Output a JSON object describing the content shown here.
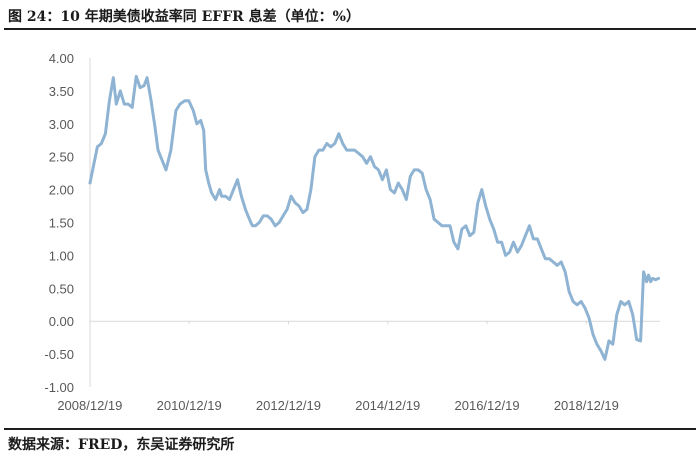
{
  "title": "图 24：10 年期美债收益率同 EFFR 息差（单位：%）",
  "source": "数据来源：FRED，东吴证券研究所",
  "chart_data": {
    "type": "line",
    "title": "图 24：10 年期美债收益率同 EFFR 息差（单位：%）",
    "xlabel": "",
    "ylabel": "",
    "ylim": [
      -1.0,
      4.0
    ],
    "yticks": [
      "4.00",
      "3.50",
      "3.00",
      "2.50",
      "2.00",
      "1.50",
      "1.00",
      "0.50",
      "0.00",
      "-0.50",
      "-1.00"
    ],
    "xticks": [
      "2008/12/19",
      "2010/12/19",
      "2012/12/19",
      "2014/12/19",
      "2016/12/19",
      "2018/12/19"
    ],
    "xlim": [
      2008.97,
      2020.45
    ],
    "grid": false,
    "legend": "none",
    "line_color": "#8fb3d3",
    "series": [
      {
        "x": [
          2008.97,
          2009.05,
          2009.12,
          2009.2,
          2009.28,
          2009.36,
          2009.44,
          2009.5,
          2009.58,
          2009.66,
          2009.74,
          2009.82,
          2009.9,
          2009.98,
          2010.06,
          2010.12,
          2010.2,
          2010.28,
          2010.34,
          2010.42,
          2010.5,
          2010.6,
          2010.7,
          2010.78,
          2010.88,
          2010.96,
          2011.05,
          2011.12,
          2011.2,
          2011.26,
          2011.3,
          2011.36,
          2011.42,
          2011.5,
          2011.58,
          2011.62,
          2011.7,
          2011.78,
          2011.86,
          2011.94,
          2012.02,
          2012.1,
          2012.18,
          2012.24,
          2012.3,
          2012.38,
          2012.46,
          2012.54,
          2012.62,
          2012.7,
          2012.78,
          2012.86,
          2012.94,
          2013.02,
          2013.1,
          2013.18,
          2013.26,
          2013.34,
          2013.42,
          2013.5,
          2013.58,
          2013.66,
          2013.74,
          2013.82,
          2013.9,
          2013.98,
          2014.06,
          2014.14,
          2014.22,
          2014.3,
          2014.38,
          2014.46,
          2014.54,
          2014.62,
          2014.7,
          2014.78,
          2014.86,
          2014.94,
          2015.02,
          2015.1,
          2015.18,
          2015.26,
          2015.34,
          2015.42,
          2015.5,
          2015.58,
          2015.66,
          2015.74,
          2015.82,
          2015.9,
          2015.98,
          2016.06,
          2016.14,
          2016.22,
          2016.3,
          2016.38,
          2016.46,
          2016.54,
          2016.62,
          2016.7,
          2016.78,
          2016.86,
          2016.94,
          2017.02,
          2017.1,
          2017.18,
          2017.26,
          2017.34,
          2017.42,
          2017.5,
          2017.58,
          2017.66,
          2017.74,
          2017.82,
          2017.9,
          2017.98,
          2018.06,
          2018.14,
          2018.22,
          2018.3,
          2018.38,
          2018.46,
          2018.54,
          2018.62,
          2018.7,
          2018.78,
          2018.86,
          2018.94,
          2019.02,
          2019.1,
          2019.18,
          2019.26,
          2019.34,
          2019.42,
          2019.5,
          2019.58,
          2019.66,
          2019.74,
          2019.82,
          2019.9,
          2019.98,
          2020.06,
          2020.12,
          2020.18,
          2020.22,
          2020.26,
          2020.3,
          2020.36,
          2020.42
        ],
        "y": [
          2.1,
          2.4,
          2.65,
          2.7,
          2.85,
          3.35,
          3.7,
          3.3,
          3.5,
          3.3,
          3.3,
          3.25,
          3.72,
          3.55,
          3.58,
          3.7,
          3.35,
          2.95,
          2.6,
          2.45,
          2.3,
          2.6,
          3.2,
          3.3,
          3.35,
          3.35,
          3.2,
          3.0,
          3.05,
          2.9,
          2.3,
          2.1,
          1.95,
          1.85,
          2.0,
          1.9,
          1.9,
          1.85,
          2.0,
          2.15,
          1.9,
          1.7,
          1.55,
          1.45,
          1.45,
          1.5,
          1.6,
          1.6,
          1.55,
          1.45,
          1.5,
          1.6,
          1.7,
          1.9,
          1.8,
          1.75,
          1.65,
          1.7,
          2.0,
          2.5,
          2.6,
          2.6,
          2.7,
          2.65,
          2.7,
          2.85,
          2.7,
          2.6,
          2.6,
          2.6,
          2.55,
          2.5,
          2.4,
          2.5,
          2.35,
          2.3,
          2.15,
          2.3,
          2.0,
          1.95,
          2.1,
          2.0,
          1.85,
          2.2,
          2.3,
          2.3,
          2.25,
          2.0,
          1.85,
          1.55,
          1.5,
          1.45,
          1.45,
          1.45,
          1.2,
          1.1,
          1.4,
          1.45,
          1.3,
          1.35,
          1.8,
          2.0,
          1.75,
          1.55,
          1.4,
          1.2,
          1.2,
          1.0,
          1.05,
          1.2,
          1.05,
          1.15,
          1.3,
          1.45,
          1.25,
          1.25,
          1.1,
          0.95,
          0.95,
          0.9,
          0.85,
          0.9,
          0.75,
          0.45,
          0.3,
          0.25,
          0.3,
          0.2,
          0.05,
          -0.2,
          -0.35,
          -0.45,
          -0.58,
          -0.3,
          -0.35,
          0.1,
          0.3,
          0.25,
          0.3,
          0.1,
          -0.28,
          -0.3,
          0.75,
          0.6,
          0.7,
          0.6,
          0.65,
          0.63,
          0.65
        ]
      }
    ]
  }
}
